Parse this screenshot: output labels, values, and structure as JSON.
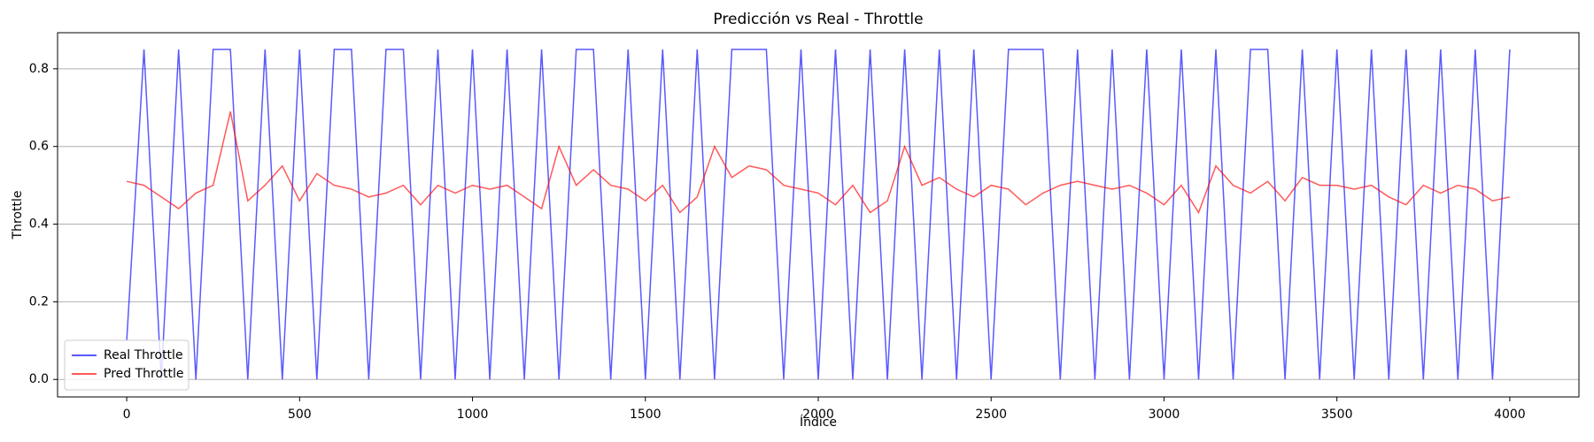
{
  "chart_data": {
    "type": "line",
    "title": "Predicción vs Real - Throttle",
    "xlabel": "Índice",
    "ylabel": "Throttle",
    "x": [
      0,
      50,
      100,
      150,
      200,
      250,
      300,
      350,
      400,
      450,
      500,
      550,
      600,
      650,
      700,
      750,
      800,
      850,
      900,
      950,
      1000,
      1050,
      1100,
      1150,
      1200,
      1250,
      1300,
      1350,
      1400,
      1450,
      1500,
      1550,
      1600,
      1650,
      1700,
      1750,
      1800,
      1850,
      1900,
      1950,
      2000,
      2050,
      2100,
      2150,
      2200,
      2250,
      2300,
      2350,
      2400,
      2450,
      2500,
      2550,
      2600,
      2650,
      2700,
      2750,
      2800,
      2850,
      2900,
      2950,
      3000,
      3050,
      3100,
      3150,
      3200,
      3250,
      3300,
      3350,
      3400,
      3450,
      3500,
      3550,
      3600,
      3650,
      3700,
      3750,
      3800,
      3850,
      3900,
      3950,
      4000
    ],
    "series": [
      {
        "name": "Real Throttle",
        "color": "#0000ff",
        "values": [
          0.1,
          0.85,
          0,
          0.85,
          0,
          0.85,
          0.85,
          0,
          0.85,
          0,
          0.85,
          0,
          0.85,
          0.85,
          0,
          0.85,
          0.85,
          0,
          0.85,
          0,
          0.85,
          0,
          0.85,
          0,
          0.85,
          0,
          0.85,
          0.85,
          0,
          0.85,
          0,
          0.85,
          0,
          0.85,
          0,
          0.85,
          0.85,
          0.85,
          0,
          0.85,
          0,
          0.85,
          0,
          0.85,
          0,
          0.85,
          0,
          0.85,
          0,
          0.85,
          0,
          0.85,
          0.85,
          0.85,
          0,
          0.85,
          0,
          0.85,
          0,
          0.85,
          0,
          0.85,
          0,
          0.85,
          0,
          0.85,
          0.85,
          0,
          0.85,
          0,
          0.85,
          0,
          0.85,
          0,
          0.85,
          0,
          0.85,
          0,
          0.85,
          0,
          0.85
        ]
      },
      {
        "name": "Pred Throttle",
        "color": "#ff0000",
        "values": [
          0.51,
          0.5,
          0.47,
          0.44,
          0.48,
          0.5,
          0.69,
          0.46,
          0.5,
          0.55,
          0.46,
          0.53,
          0.5,
          0.49,
          0.47,
          0.48,
          0.5,
          0.45,
          0.5,
          0.48,
          0.5,
          0.49,
          0.5,
          0.47,
          0.44,
          0.6,
          0.5,
          0.54,
          0.5,
          0.49,
          0.46,
          0.5,
          0.43,
          0.47,
          0.6,
          0.52,
          0.55,
          0.54,
          0.5,
          0.49,
          0.48,
          0.45,
          0.5,
          0.43,
          0.46,
          0.6,
          0.5,
          0.52,
          0.49,
          0.47,
          0.5,
          0.49,
          0.45,
          0.48,
          0.5,
          0.51,
          0.5,
          0.49,
          0.5,
          0.48,
          0.45,
          0.5,
          0.43,
          0.55,
          0.5,
          0.48,
          0.51,
          0.46,
          0.52,
          0.5,
          0.5,
          0.49,
          0.5,
          0.47,
          0.45,
          0.5,
          0.48,
          0.5,
          0.49,
          0.46,
          0.47
        ]
      }
    ],
    "xlim": [
      -200,
      4200
    ],
    "xticks": [
      0,
      500,
      1000,
      1500,
      2000,
      2500,
      3000,
      3500,
      4000
    ],
    "ylim": [
      -0.045,
      0.893
    ],
    "yticks": [
      {
        "value": 0,
        "label": "0.0"
      },
      0.2,
      0.4,
      0.6,
      0.8
    ],
    "grid": true,
    "legend": "lower left"
  }
}
